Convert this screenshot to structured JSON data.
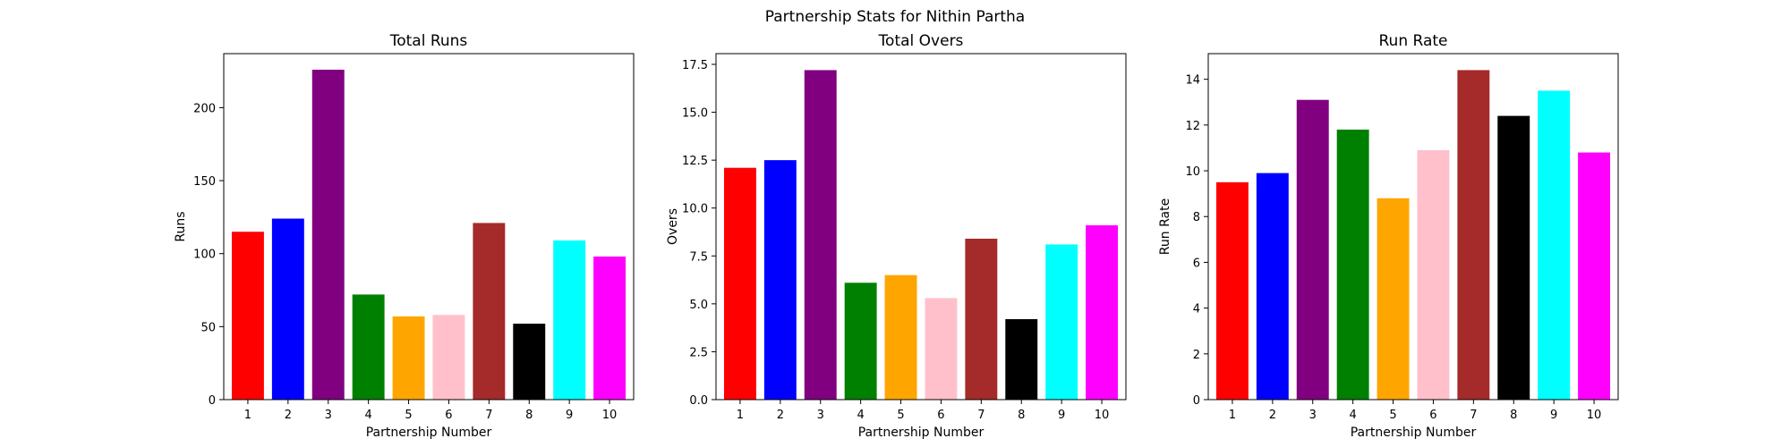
{
  "figure": {
    "suptitle": "Partnership Stats for Nithin Partha"
  },
  "colors": [
    "#ff0000",
    "#0000ff",
    "#800080",
    "#008000",
    "#ffa500",
    "#ffc0cb",
    "#a52a2a",
    "#000000",
    "#00ffff",
    "#ff00ff"
  ],
  "chart_data": [
    {
      "type": "bar",
      "title": "Total Runs",
      "xlabel": "Partnership Number",
      "ylabel": "Runs",
      "categories": [
        "1",
        "2",
        "3",
        "4",
        "5",
        "6",
        "7",
        "8",
        "9",
        "10"
      ],
      "values": [
        115,
        124,
        226,
        72,
        57,
        58,
        121,
        52,
        109,
        98
      ],
      "ylim": [
        0,
        237
      ],
      "yticks": [
        0,
        50,
        100,
        150,
        200
      ],
      "ytick_labels": [
        "0",
        "50",
        "100",
        "150",
        "200"
      ],
      "grid": false
    },
    {
      "type": "bar",
      "title": "Total Overs",
      "xlabel": "Partnership Number",
      "ylabel": "Overs",
      "categories": [
        "1",
        "2",
        "3",
        "4",
        "5",
        "6",
        "7",
        "8",
        "9",
        "10"
      ],
      "values": [
        12.1,
        12.5,
        17.2,
        6.1,
        6.5,
        5.3,
        8.4,
        4.2,
        8.1,
        9.1
      ],
      "ylim": [
        0,
        18.06
      ],
      "yticks": [
        0,
        2.5,
        5,
        7.5,
        10,
        12.5,
        15,
        17.5
      ],
      "ytick_labels": [
        "0.0",
        "2.5",
        "5.0",
        "7.5",
        "10.0",
        "12.5",
        "15.0",
        "17.5"
      ],
      "grid": false
    },
    {
      "type": "bar",
      "title": "Run Rate",
      "xlabel": "Partnership Number",
      "ylabel": "Run Rate",
      "categories": [
        "1",
        "2",
        "3",
        "4",
        "5",
        "6",
        "7",
        "8",
        "9",
        "10"
      ],
      "values": [
        9.5,
        9.9,
        13.1,
        11.8,
        8.8,
        10.9,
        14.4,
        12.4,
        13.5,
        10.8
      ],
      "ylim": [
        0,
        15.12
      ],
      "yticks": [
        0,
        2,
        4,
        6,
        8,
        10,
        12,
        14
      ],
      "ytick_labels": [
        "0",
        "2",
        "4",
        "6",
        "8",
        "10",
        "12",
        "14"
      ],
      "grid": false
    }
  ]
}
